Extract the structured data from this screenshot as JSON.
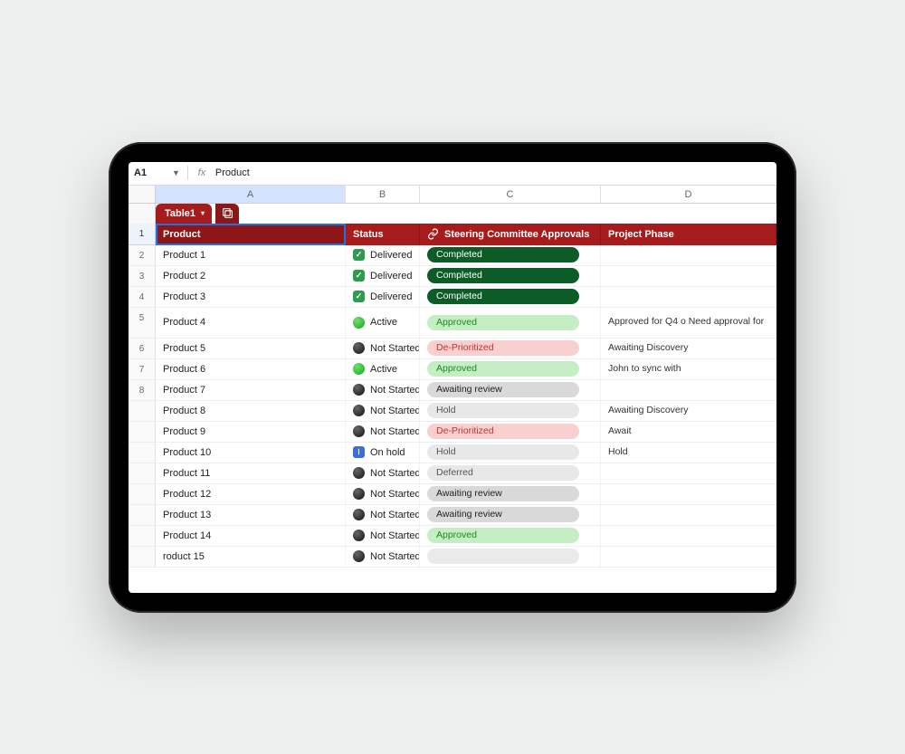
{
  "toolbar": {
    "cell_ref": "A1",
    "formula_value": "Product",
    "fx_label": "fx"
  },
  "columns": [
    "A",
    "B",
    "C",
    "D"
  ],
  "selected_column_index": 0,
  "table_tab": {
    "label": "Table1"
  },
  "headers": {
    "product": "Product",
    "status": "Status",
    "approvals": "Steering Committee Approvals",
    "phase": "Project Phase"
  },
  "status_style": {
    "Delivered": {
      "icon": "delivered",
      "glyph": "✓"
    },
    "Active": {
      "icon": "active",
      "glyph": ""
    },
    "Not Started": {
      "icon": "notstart",
      "glyph": ""
    },
    "On hold": {
      "icon": "hold",
      "glyph": "ⅰ"
    }
  },
  "approval_style": {
    "Completed": "pill-completed",
    "Approved": "pill-approved",
    "De-Prioritized": "pill-deprior",
    "Awaiting review": "pill-await",
    "Hold": "pill-hold",
    "Deferred": "pill-deferred",
    "": "pill-empty"
  },
  "rows": [
    {
      "n": 2,
      "product": "Product 1",
      "status": "Delivered",
      "approval": "Completed",
      "phase": ""
    },
    {
      "n": 3,
      "product": "Product 2",
      "status": "Delivered",
      "approval": "Completed",
      "phase": ""
    },
    {
      "n": 4,
      "product": "Product 3",
      "status": "Delivered",
      "approval": "Completed",
      "phase": ""
    },
    {
      "n": 5,
      "product": "Product 4",
      "status": "Active",
      "approval": "Approved",
      "phase": "Approved for Q4 o\nNeed approval for",
      "tall": true
    },
    {
      "n": 6,
      "product": "Product 5",
      "status": "Not Started",
      "approval": "De-Prioritized",
      "phase": "Awaiting Discovery"
    },
    {
      "n": 7,
      "product": "Product 6",
      "status": "Active",
      "approval": "Approved",
      "phase": "John to sync with"
    },
    {
      "n": 8,
      "product": "Product 7",
      "status": "Not Started",
      "approval": "Awaiting review",
      "phase": ""
    },
    {
      "n": "",
      "product": "Product 8",
      "status": "Not Started",
      "approval": "Hold",
      "phase": "Awaiting Discovery"
    },
    {
      "n": "",
      "product": "Product 9",
      "status": "Not Started",
      "approval": "De-Prioritized",
      "phase": "Await"
    },
    {
      "n": "",
      "product": "Product 10",
      "status": "On hold",
      "approval": "Hold",
      "phase": "Hold"
    },
    {
      "n": "",
      "product": "Product 11",
      "status": "Not Started",
      "approval": "Deferred",
      "phase": ""
    },
    {
      "n": "",
      "product": "Product 12",
      "status": "Not Started",
      "approval": "Awaiting review",
      "phase": ""
    },
    {
      "n": "",
      "product": "Product 13",
      "status": "Not Started",
      "approval": "Awaiting review",
      "phase": ""
    },
    {
      "n": "",
      "product": "Product 14",
      "status": "Not Started",
      "approval": "Approved",
      "phase": ""
    },
    {
      "n": "",
      "product": "roduct 15",
      "status": "Not Started",
      "approval": "",
      "phase": ""
    }
  ],
  "colors": {
    "brand_red": "#a61c1c",
    "brand_red_dark": "#8f1616",
    "selection_blue": "#1a73e8",
    "col_selected_bg": "#d3e3fd"
  }
}
